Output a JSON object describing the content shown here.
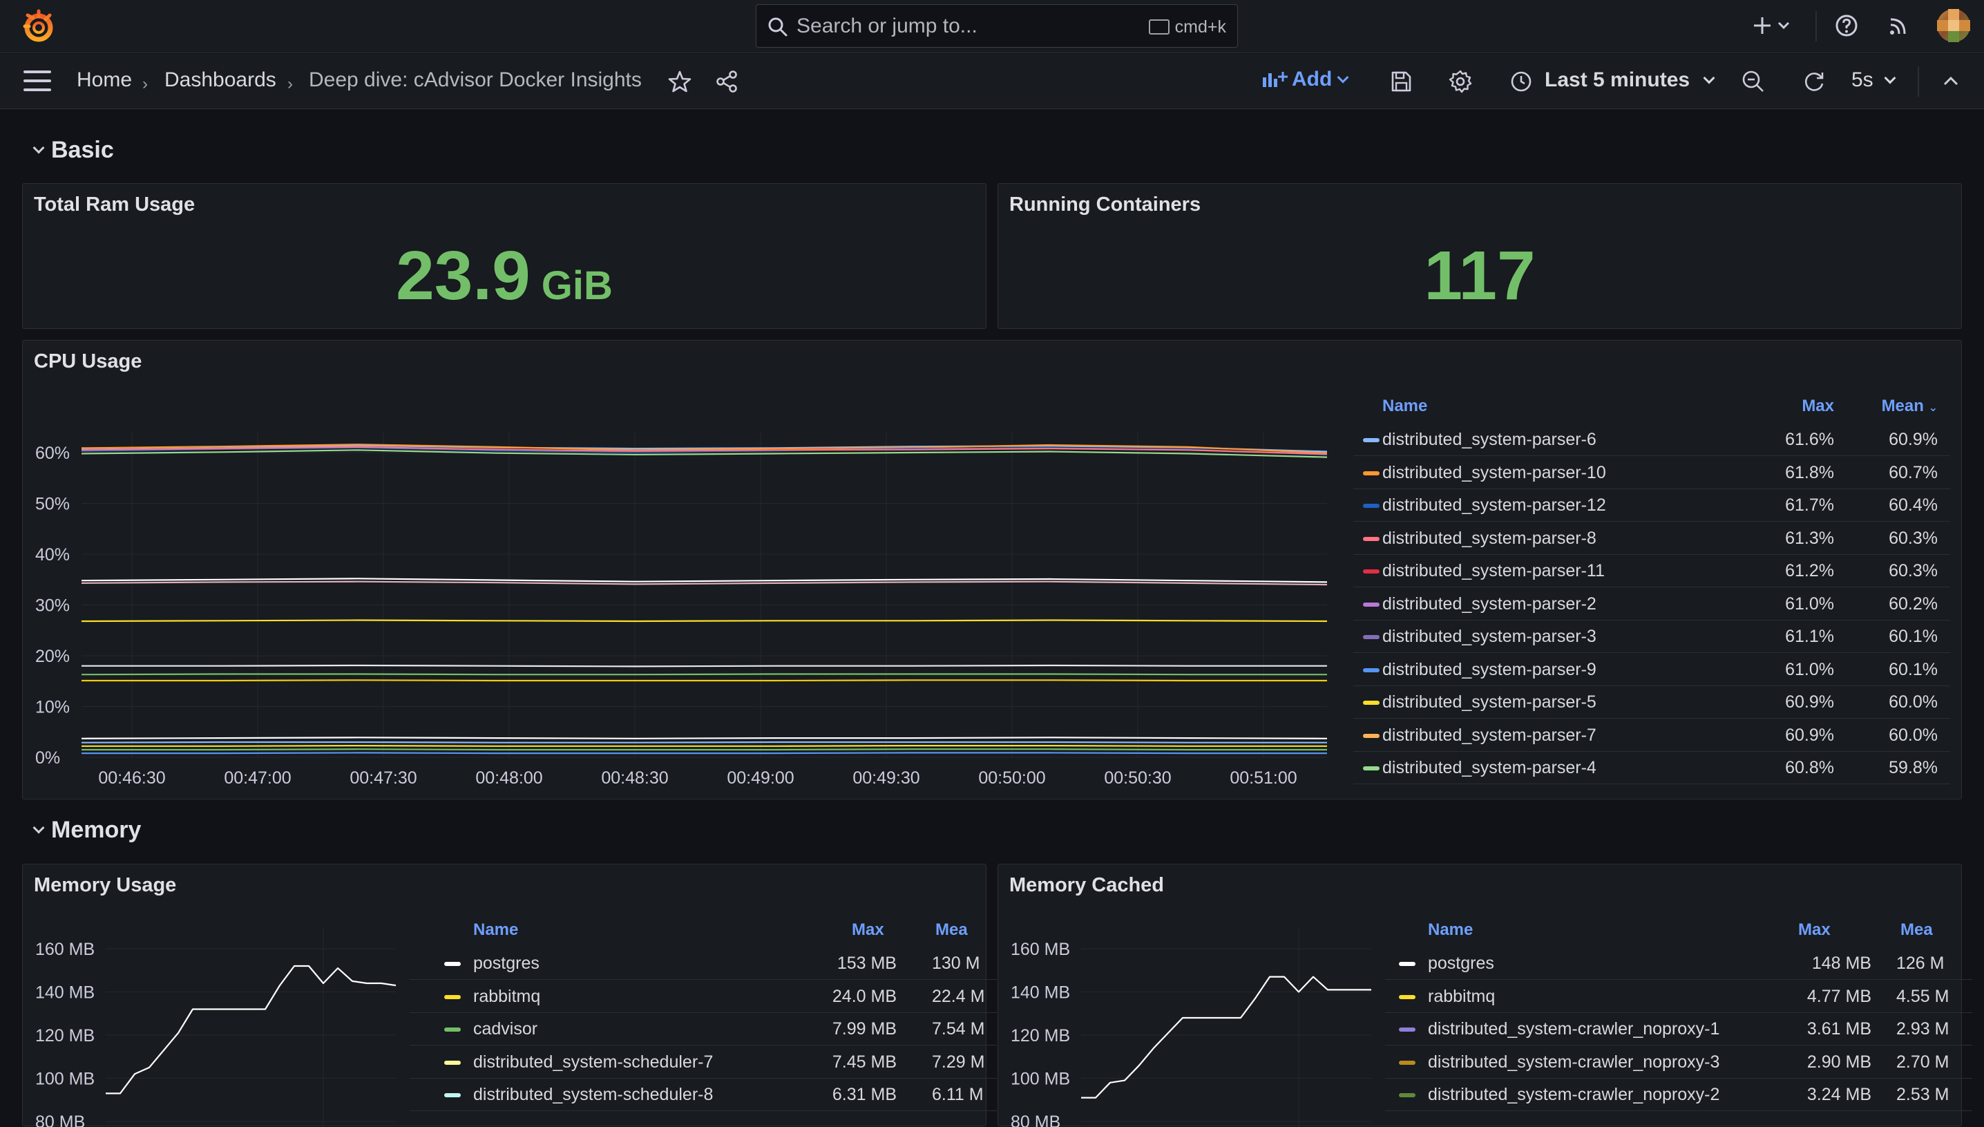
{
  "search": {
    "placeholder": "Search or jump to...",
    "shortcut": "cmd+k"
  },
  "breadcrumb": {
    "home": "Home",
    "dashboards": "Dashboards",
    "current": "Deep dive: cAdvisor Docker Insights"
  },
  "toolbar": {
    "add_label": "Add",
    "time_range": "Last 5 minutes",
    "refresh_interval": "5s"
  },
  "rows": {
    "basic": "Basic",
    "memory": "Memory"
  },
  "panels": {
    "ram": {
      "title": "Total Ram Usage",
      "value": "23.9",
      "unit": "GiB",
      "color": "#73bf69"
    },
    "containers": {
      "title": "Running Containers",
      "value": "117",
      "color": "#73bf69"
    },
    "cpu": {
      "title": "CPU Usage"
    },
    "mem_usage": {
      "title": "Memory Usage"
    },
    "mem_cached": {
      "title": "Memory Cached"
    }
  },
  "cpu_legend": {
    "headers": {
      "name": "Name",
      "max": "Max",
      "mean": "Mean"
    },
    "rows": [
      {
        "name": "distributed_system-parser-6",
        "max": "61.6%",
        "mean": "60.9%",
        "color": "#8ab8ff"
      },
      {
        "name": "distributed_system-parser-10",
        "max": "61.8%",
        "mean": "60.7%",
        "color": "#ff9830"
      },
      {
        "name": "distributed_system-parser-12",
        "max": "61.7%",
        "mean": "60.4%",
        "color": "#1f60c4"
      },
      {
        "name": "distributed_system-parser-8",
        "max": "61.3%",
        "mean": "60.3%",
        "color": "#ff7383"
      },
      {
        "name": "distributed_system-parser-11",
        "max": "61.2%",
        "mean": "60.3%",
        "color": "#e02f44"
      },
      {
        "name": "distributed_system-parser-2",
        "max": "61.0%",
        "mean": "60.2%",
        "color": "#b877d9"
      },
      {
        "name": "distributed_system-parser-3",
        "max": "61.1%",
        "mean": "60.1%",
        "color": "#806eb7"
      },
      {
        "name": "distributed_system-parser-9",
        "max": "61.0%",
        "mean": "60.1%",
        "color": "#5794f2"
      },
      {
        "name": "distributed_system-parser-5",
        "max": "60.9%",
        "mean": "60.0%",
        "color": "#fade2a"
      },
      {
        "name": "distributed_system-parser-7",
        "max": "60.9%",
        "mean": "60.0%",
        "color": "#ffb357"
      },
      {
        "name": "distributed_system-parser-4",
        "max": "60.8%",
        "mean": "59.8%",
        "color": "#96d98d"
      }
    ]
  },
  "mem_usage_legend": {
    "headers": {
      "name": "Name",
      "max": "Max",
      "mean": "Mea"
    },
    "rows": [
      {
        "name": "postgres",
        "max": "153 MB",
        "mean": "130 M",
        "color": "#ffffff"
      },
      {
        "name": "rabbitmq",
        "max": "24.0 MB",
        "mean": "22.4 M",
        "color": "#fade2a"
      },
      {
        "name": "cadvisor",
        "max": "7.99 MB",
        "mean": "7.54 M",
        "color": "#73bf69"
      },
      {
        "name": "distributed_system-scheduler-7",
        "max": "7.45 MB",
        "mean": "7.29 M",
        "color": "#fff899"
      },
      {
        "name": "distributed_system-scheduler-8",
        "max": "6.31 MB",
        "mean": "6.11 M",
        "color": "#c0f5f0"
      }
    ]
  },
  "mem_cached_legend": {
    "headers": {
      "name": "Name",
      "max": "Max",
      "mean": "Mea"
    },
    "rows": [
      {
        "name": "postgres",
        "max": "148 MB",
        "mean": "126 M",
        "color": "#ffffff"
      },
      {
        "name": "rabbitmq",
        "max": "4.77 MB",
        "mean": "4.55 M",
        "color": "#fade2a"
      },
      {
        "name": "distributed_system-crawler_noproxy-1",
        "max": "3.61 MB",
        "mean": "2.93 M",
        "color": "#8f7fd9"
      },
      {
        "name": "distributed_system-crawler_noproxy-3",
        "max": "2.90 MB",
        "mean": "2.70 M",
        "color": "#b88a1f"
      },
      {
        "name": "distributed_system-crawler_noproxy-2",
        "max": "3.24 MB",
        "mean": "2.53 M",
        "color": "#5f8a3a"
      }
    ]
  },
  "chart_data": [
    {
      "type": "line",
      "title": "CPU Usage",
      "x": [
        "00:46:30",
        "00:47:00",
        "00:47:30",
        "00:48:00",
        "00:48:30",
        "00:49:00",
        "00:49:30",
        "00:50:00",
        "00:50:30",
        "00:51:00"
      ],
      "y_ticks": [
        "0%",
        "10%",
        "20%",
        "30%",
        "40%",
        "50%",
        "60%"
      ],
      "ylim": [
        0,
        60
      ],
      "series": [
        {
          "name": "distributed_system-parser-6",
          "color": "#8ab8ff",
          "values": [
            60.6,
            60.9,
            61.4,
            61.0,
            60.8,
            60.9,
            61.2,
            61.3,
            61.0,
            60.2
          ]
        },
        {
          "name": "distributed_system-parser-10",
          "color": "#ff9830",
          "values": [
            60.9,
            61.2,
            61.6,
            61.1,
            60.5,
            60.8,
            61.0,
            61.5,
            61.1,
            59.9
          ]
        },
        {
          "name": "distributed_system-parser-12",
          "color": "#1f60c4",
          "values": [
            60.3,
            60.7,
            61.0,
            60.4,
            60.1,
            60.4,
            60.8,
            60.9,
            60.6,
            59.6
          ]
        },
        {
          "name": "distributed_system-parser-8",
          "color": "#ff7383",
          "values": [
            60.5,
            60.8,
            61.1,
            60.6,
            60.3,
            60.5,
            60.6,
            60.8,
            60.5,
            59.7
          ]
        },
        {
          "name": "distributed_system-parser-4",
          "color": "#96d98d",
          "values": [
            59.8,
            60.1,
            60.5,
            59.9,
            59.6,
            59.8,
            60.0,
            60.2,
            59.8,
            59.1
          ]
        },
        {
          "name": "",
          "color": "#ffffff",
          "values": [
            34.8,
            35.0,
            35.2,
            34.9,
            34.6,
            34.8,
            35.0,
            35.1,
            34.8,
            34.5
          ]
        },
        {
          "name": "",
          "color": "#e0b0b8",
          "values": [
            34.3,
            34.5,
            34.6,
            34.4,
            34.1,
            34.3,
            34.5,
            34.6,
            34.3,
            34.0
          ]
        },
        {
          "name": "",
          "color": "#fade2a",
          "values": [
            26.8,
            26.9,
            27.0,
            26.9,
            26.8,
            26.9,
            26.9,
            27.0,
            26.9,
            26.8
          ]
        },
        {
          "name": "",
          "color": "#e8e8f0",
          "values": [
            18.0,
            18.0,
            18.1,
            18.0,
            17.9,
            18.0,
            18.0,
            18.1,
            18.0,
            18.0
          ]
        },
        {
          "name": "",
          "color": "#73bf69",
          "values": [
            16.3,
            16.4,
            16.4,
            16.3,
            16.3,
            16.4,
            16.4,
            16.4,
            16.3,
            16.3
          ]
        },
        {
          "name": "",
          "color": "#f2cc0c",
          "values": [
            15.1,
            15.1,
            15.2,
            15.1,
            15.1,
            15.1,
            15.2,
            15.2,
            15.1,
            15.1
          ]
        },
        {
          "name": "",
          "color": "#ffffff",
          "values": [
            3.7,
            3.8,
            3.9,
            3.8,
            3.7,
            3.8,
            3.8,
            3.9,
            3.8,
            3.7
          ]
        },
        {
          "name": "",
          "color": "#8ab8ff",
          "values": [
            2.9,
            3.0,
            3.0,
            2.9,
            2.9,
            3.0,
            3.0,
            3.0,
            2.9,
            2.9
          ]
        },
        {
          "name": "",
          "color": "#fade2a",
          "values": [
            2.2,
            2.2,
            2.3,
            2.2,
            2.2,
            2.2,
            2.3,
            2.3,
            2.2,
            2.2
          ]
        },
        {
          "name": "",
          "color": "#73bf69",
          "values": [
            1.5,
            1.5,
            1.6,
            1.5,
            1.5,
            1.5,
            1.6,
            1.6,
            1.5,
            1.5
          ]
        },
        {
          "name": "",
          "color": "#5794f2",
          "values": [
            0.8,
            0.8,
            0.9,
            0.8,
            0.8,
            0.8,
            0.9,
            0.9,
            0.8,
            0.8
          ]
        }
      ]
    },
    {
      "type": "line",
      "title": "Memory Usage",
      "y_ticks": [
        "80 MB",
        "100 MB",
        "120 MB",
        "140 MB",
        "160 MB"
      ],
      "ylim": [
        80,
        160
      ],
      "series": [
        {
          "name": "postgres",
          "color": "#ffffff",
          "values": [
            93,
            93,
            102,
            105,
            113,
            121,
            132,
            132,
            132,
            132,
            132,
            132,
            143,
            152,
            152,
            144,
            151,
            145,
            144,
            144,
            143
          ]
        }
      ]
    },
    {
      "type": "line",
      "title": "Memory Cached",
      "y_ticks": [
        "80 MB",
        "100 MB",
        "120 MB",
        "140 MB",
        "160 MB"
      ],
      "ylim": [
        80,
        160
      ],
      "series": [
        {
          "name": "postgres",
          "color": "#ffffff",
          "values": [
            91,
            91,
            98,
            99,
            106,
            114,
            121,
            128,
            128,
            128,
            128,
            128,
            137,
            147,
            147,
            140,
            147,
            141,
            141,
            141,
            141
          ]
        }
      ]
    }
  ]
}
